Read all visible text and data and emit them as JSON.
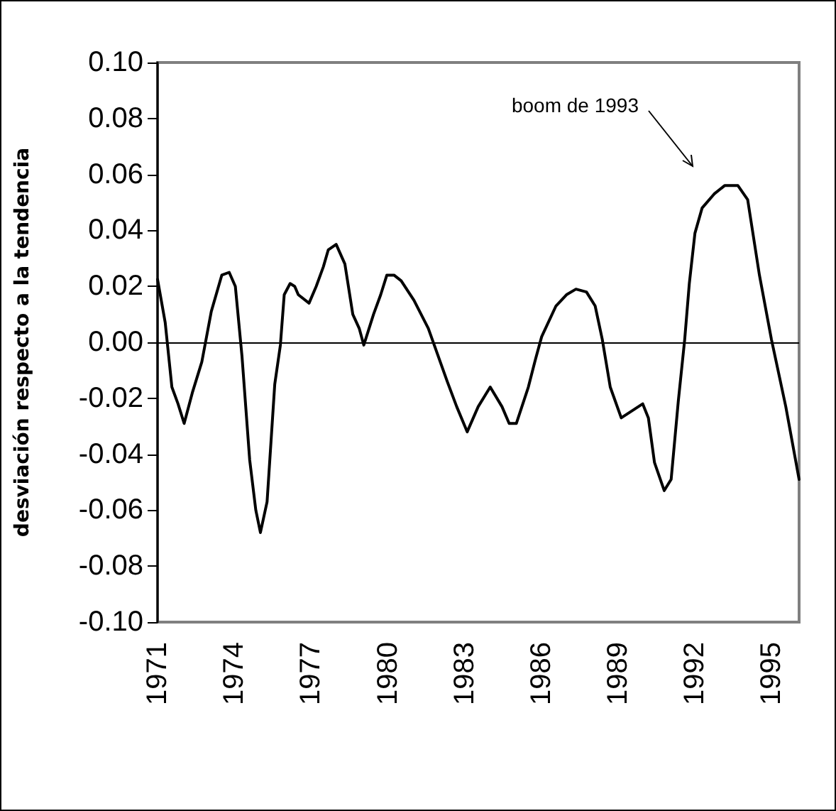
{
  "chart_data": {
    "type": "line",
    "ylabel": "desviación respecto a la tendencia",
    "annotations": [
      "boom de 1993"
    ],
    "series": [
      {
        "color": "#000000",
        "x": [
          1971.0,
          1971.3,
          1971.56,
          1971.8,
          1972.04,
          1972.36,
          1972.73,
          1973.1,
          1973.51,
          1973.8,
          1974.04,
          1974.3,
          1974.6,
          1974.84,
          1975.02,
          1975.28,
          1975.58,
          1975.8,
          1975.95,
          1976.18,
          1976.36,
          1976.5,
          1976.92,
          1977.2,
          1977.48,
          1977.67,
          1977.98,
          1978.32,
          1978.63,
          1978.88,
          1979.06,
          1979.44,
          1979.72,
          1979.96,
          1980.24,
          1980.52,
          1981.02,
          1981.58,
          1982.32,
          1982.69,
          1983.1,
          1983.53,
          1984.0,
          1984.46,
          1984.74,
          1985.02,
          1985.49,
          1985.77,
          1986.01,
          1986.57,
          1986.98,
          1987.35,
          1987.76,
          1988.1,
          1988.38,
          1988.69,
          1989.12,
          1989.62,
          1989.96,
          1990.18,
          1990.42,
          1990.8,
          1991.07,
          1991.35,
          1991.6,
          1991.78,
          1992.0,
          1992.28,
          1992.75,
          1993.16,
          1993.68,
          1994.06,
          1994.52,
          1994.99,
          1995.55,
          1996.07
        ],
        "values": [
          0.0225,
          0.007,
          -0.016,
          -0.022,
          -0.029,
          -0.018,
          -0.007,
          0.011,
          0.024,
          0.025,
          0.02,
          -0.005,
          -0.042,
          -0.06,
          -0.068,
          -0.057,
          -0.015,
          -0.001,
          0.017,
          0.021,
          0.02,
          0.017,
          0.014,
          0.02,
          0.027,
          0.033,
          0.035,
          0.028,
          0.01,
          0.005,
          -0.001,
          0.01,
          0.017,
          0.024,
          0.024,
          0.022,
          0.015,
          0.005,
          -0.014,
          -0.023,
          -0.032,
          -0.023,
          -0.016,
          -0.023,
          -0.029,
          -0.029,
          -0.016,
          -0.006,
          0.002,
          0.013,
          0.017,
          0.019,
          0.018,
          0.013,
          0.001,
          -0.016,
          -0.027,
          -0.024,
          -0.022,
          -0.027,
          -0.043,
          -0.053,
          -0.049,
          -0.021,
          0.001,
          0.021,
          0.039,
          0.048,
          0.053,
          0.056,
          0.056,
          0.051,
          0.024,
          0.001,
          -0.023,
          -0.049
        ]
      }
    ],
    "xlim": [
      1971,
      1996.07
    ],
    "xticks": [
      1971,
      1974,
      1977,
      1980,
      1983,
      1986,
      1989,
      1992,
      1995
    ],
    "ylim": [
      -0.1,
      0.1
    ],
    "yticks": [
      {
        "value": 0.1,
        "label": "0.10"
      },
      {
        "value": 0.08,
        "label": "0.08"
      },
      {
        "value": 0.06,
        "label": "0.06"
      },
      {
        "value": 0.04,
        "label": "0.04"
      },
      {
        "value": 0.02,
        "label": "0.02"
      },
      {
        "value": 0,
        "label": "0.00"
      },
      {
        "value": -0.02,
        "label": "-0.02"
      },
      {
        "value": -0.04,
        "label": "-0.04"
      },
      {
        "value": -0.06,
        "label": "-0.06"
      },
      {
        "value": -0.08,
        "label": "-0.08"
      },
      {
        "value": -0.1,
        "label": "-0.10"
      }
    ],
    "ref_lines": [
      {
        "axis": "y",
        "value": 0,
        "color": "#000000"
      }
    ],
    "grid": false,
    "marker": "none",
    "line_style": "solid"
  }
}
